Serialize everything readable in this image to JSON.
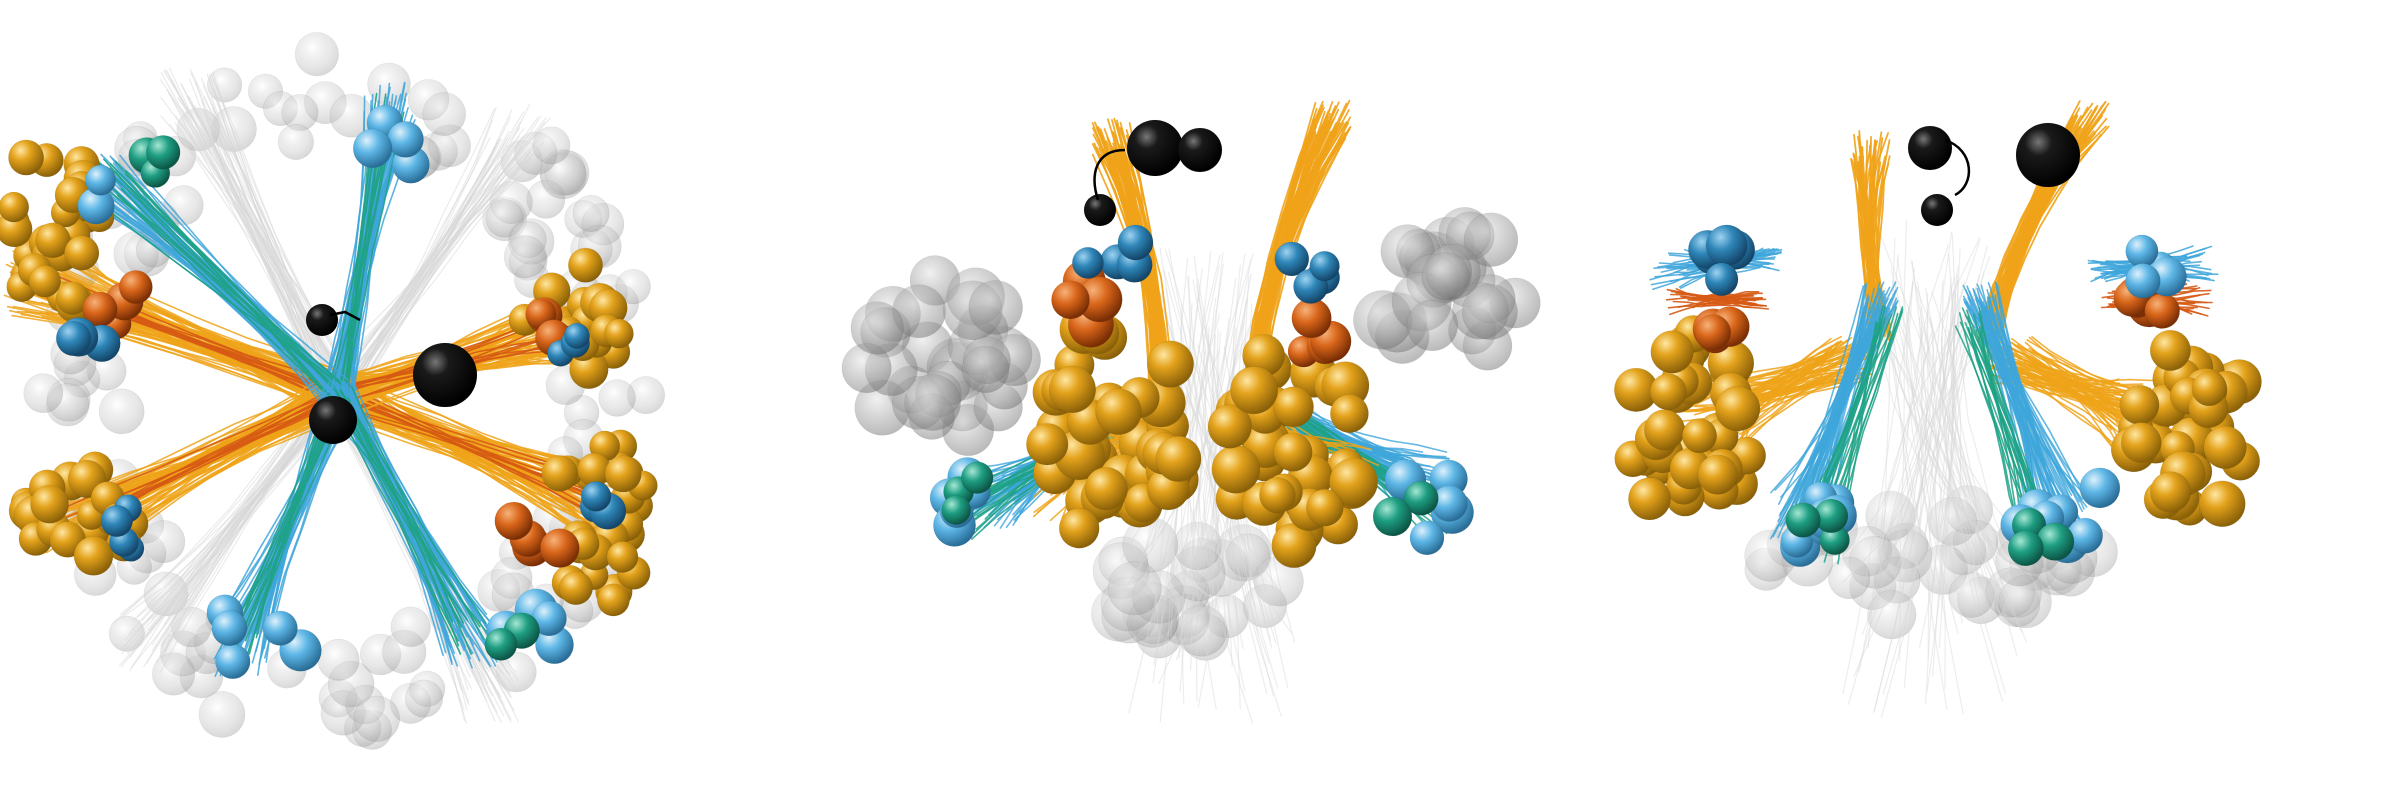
{
  "image": {
    "kind": "3D molecular rendering (no visible text)",
    "views": [
      {
        "id": "view-top",
        "description": ""
      },
      {
        "id": "view-front",
        "description": ""
      },
      {
        "id": "view-back",
        "description": ""
      }
    ]
  },
  "colors": {
    "gold": "#E3A21B",
    "gold_dark": "#A9780F",
    "orange": "#D9661A",
    "orange_dark": "#8E3A0A",
    "blue": "#2E86B8",
    "light_blue": "#5DB6E6",
    "green": "#1E9E82",
    "black": "#0b0b0b",
    "grey_ghost": "#9c9c9c",
    "strand_orange": "#EFA319",
    "strand_blue": "#3FA6DB",
    "strand_green": "#1FA286",
    "strand_red": "#D65A14",
    "strand_grey": "#d8d8d8"
  }
}
